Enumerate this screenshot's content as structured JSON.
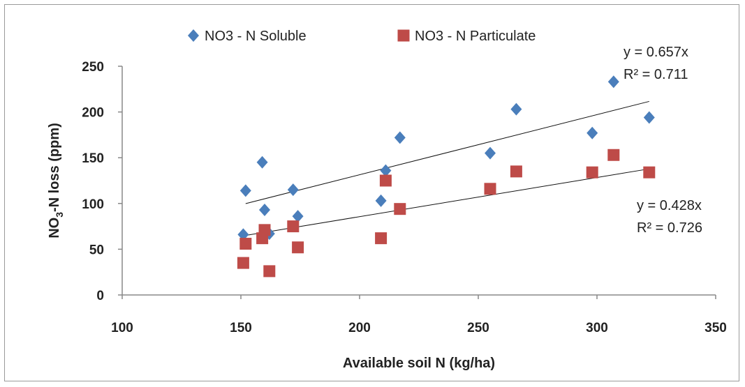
{
  "chart_data": {
    "type": "scatter",
    "xlabel": "Available soil N  (kg/ha)",
    "ylabel_main": "NO",
    "ylabel_sub": "3",
    "ylabel_rest": "-N loss (ppm)",
    "xlim": [
      100,
      350
    ],
    "ylim": [
      0,
      250
    ],
    "x_ticks": [
      100,
      150,
      200,
      250,
      300,
      350
    ],
    "y_ticks": [
      0,
      50,
      100,
      150,
      200,
      250
    ],
    "grid": false,
    "legend_position": "top",
    "series": [
      {
        "name": "NO3 - N Soluble",
        "color": "#4a7ebb",
        "marker": "diamond",
        "points": [
          [
            151,
            66
          ],
          [
            152,
            114
          ],
          [
            159,
            145
          ],
          [
            160,
            93
          ],
          [
            162,
            67
          ],
          [
            172,
            115
          ],
          [
            174,
            86
          ],
          [
            209,
            103
          ],
          [
            211,
            136
          ],
          [
            217,
            172
          ],
          [
            255,
            155
          ],
          [
            266,
            203
          ],
          [
            298,
            177
          ],
          [
            307,
            233
          ],
          [
            322,
            194
          ]
        ],
        "trend": {
          "slope": 0.657,
          "x_start": 152,
          "x_end": 322
        },
        "equation": "y = 0.657x",
        "r2": "R² = 0.711"
      },
      {
        "name": "NO3 - N Particulate",
        "color": "#be4b48",
        "marker": "square",
        "points": [
          [
            151,
            35
          ],
          [
            152,
            56
          ],
          [
            159,
            62
          ],
          [
            160,
            71
          ],
          [
            162,
            26
          ],
          [
            172,
            75
          ],
          [
            174,
            52
          ],
          [
            209,
            62
          ],
          [
            211,
            125
          ],
          [
            217,
            94
          ],
          [
            255,
            116
          ],
          [
            266,
            135
          ],
          [
            298,
            134
          ],
          [
            307,
            153
          ],
          [
            322,
            134
          ]
        ],
        "trend": {
          "slope": 0.428,
          "x_start": 152,
          "x_end": 322
        },
        "equation": "y = 0.428x",
        "r2": "R² = 0.726"
      }
    ]
  }
}
